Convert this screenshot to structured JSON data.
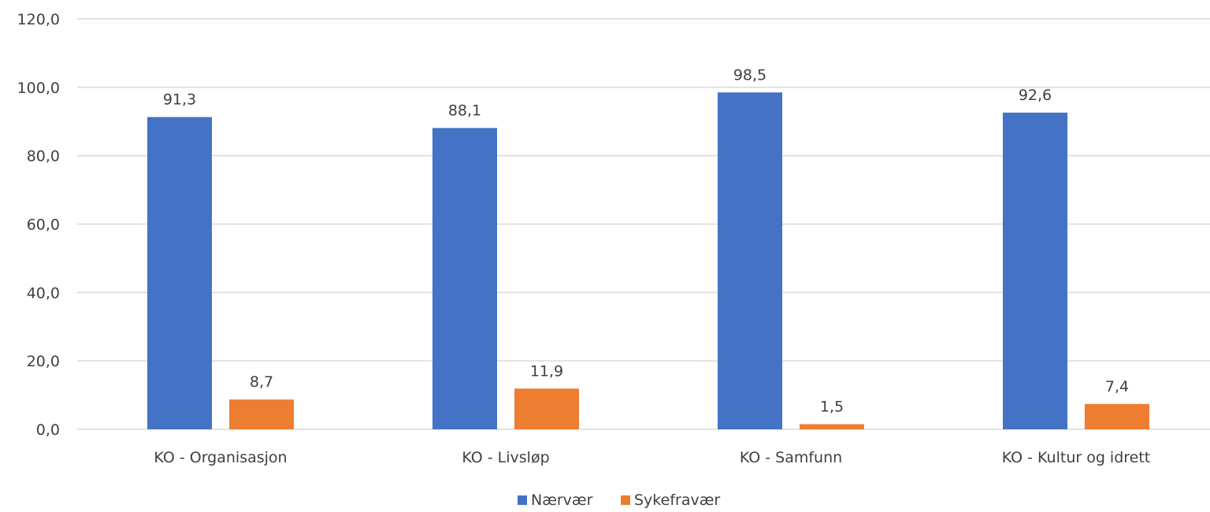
{
  "chart_data": {
    "type": "bar",
    "title": "",
    "xlabel": "",
    "ylabel": "",
    "categories": [
      "KO - Organisasjon",
      "KO - Livsløp",
      "KO - Samfunn",
      "KO - Kultur og idrett"
    ],
    "series": [
      {
        "name": "Nærvær",
        "color": "#4472c4",
        "values": [
          91.3,
          88.1,
          98.5,
          92.6
        ],
        "labels": [
          "91,3",
          "88,1",
          "98,5",
          "92,6"
        ]
      },
      {
        "name": "Sykefravær",
        "color": "#ed7d31",
        "values": [
          8.7,
          11.9,
          1.5,
          7.4
        ],
        "labels": [
          "8,7",
          "11,9",
          "1,5",
          "7,4"
        ]
      }
    ],
    "ylim": [
      0,
      120
    ],
    "yticks": [
      0,
      20,
      40,
      60,
      80,
      100,
      120
    ],
    "ytick_labels": [
      "0,0",
      "20,0",
      "40,0",
      "60,0",
      "80,0",
      "100,0",
      "120,0"
    ],
    "grid": true,
    "legend_position": "bottom"
  }
}
